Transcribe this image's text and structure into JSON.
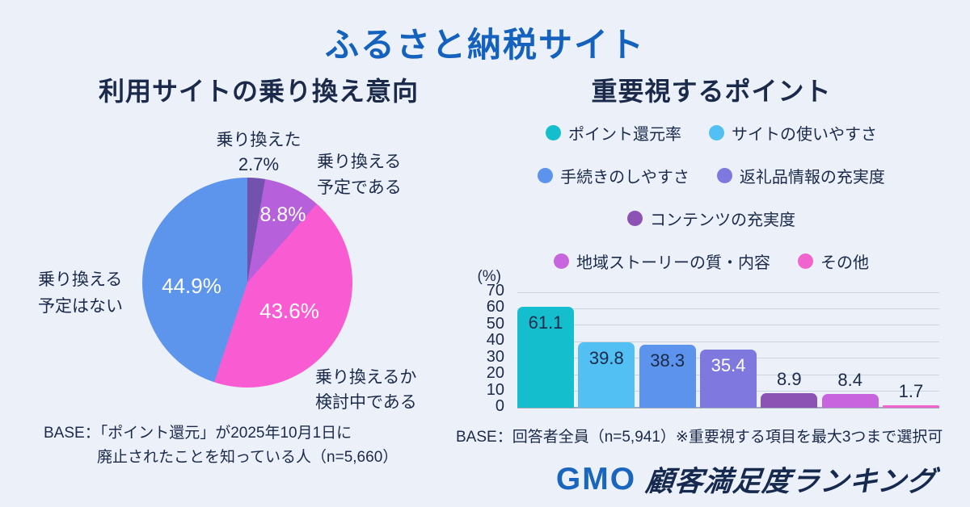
{
  "page": {
    "title": "ふるさと納税サイト",
    "background_color": "#ECF1F9",
    "title_color": "#1462BE",
    "text_color": "#1B2A4A"
  },
  "footer": {
    "logo_gmo": "GMO",
    "logo_jp": "顧客満足度ランキング",
    "logo_gmo_color": "#1A65BE"
  },
  "chart_data": [
    {
      "type": "pie",
      "title": "利用サイトの乗り換え意向",
      "start_angle_deg": 0,
      "direction": "clockwise",
      "slices": [
        {
          "label": "乗り換えた",
          "label_lines": [
            "乗り換えた"
          ],
          "value": 2.7,
          "pct_label": "2.7%",
          "color": "#7352AE"
        },
        {
          "label": "乗り換える予定である",
          "label_lines": [
            "乗り換える",
            "予定である"
          ],
          "value": 8.8,
          "pct_label": "8.8%",
          "color": "#B660DC"
        },
        {
          "label": "乗り換えるか検討中である",
          "label_lines": [
            "乗り換えるか",
            "検討中である"
          ],
          "value": 43.6,
          "pct_label": "43.6%",
          "color": "#F95CD2"
        },
        {
          "label": "乗り換える予定はない",
          "label_lines": [
            "乗り換える",
            "予定はない"
          ],
          "value": 44.9,
          "pct_label": "44.9%",
          "color": "#5D95EC"
        }
      ],
      "base_note": "BASE：「ポイント還元」が2025年10月1日に廃止されたことを知っている人（n=5,660）",
      "base_note_lines": [
        "BASE：「ポイント還元」が2025年10月1日に",
        "廃止されたことを知っている人（n=5,660）"
      ]
    },
    {
      "type": "bar",
      "title": "重要視するポイント",
      "categories": [
        "ポイント還元率",
        "サイトの使いやすさ",
        "手続きのしやすさ",
        "返礼品情報の充実度",
        "コンテンツの充実度",
        "地域ストーリーの質・内容",
        "その他"
      ],
      "values": [
        61.1,
        39.8,
        38.3,
        35.4,
        8.9,
        8.4,
        1.7
      ],
      "colors": [
        "#15BECD",
        "#52C0F2",
        "#5C93EC",
        "#7F79DF",
        "#8C52B4",
        "#C864DE",
        "#F164CE"
      ],
      "value_label_styles": [
        "inside-dark",
        "inside-dark",
        "inside-dark",
        "inside-white",
        "above",
        "above",
        "above"
      ],
      "ylabel": "(%)",
      "ylim": [
        0,
        70
      ],
      "ytick_step": 10,
      "grid": true,
      "legend_position": "top",
      "legend_rows": [
        [
          0,
          1
        ],
        [
          2,
          3
        ],
        [
          4
        ],
        [
          5,
          6
        ]
      ],
      "base_note": "BASE：回答者全員（n=5,941）※重要視する項目を最大3つまで選択可"
    }
  ]
}
